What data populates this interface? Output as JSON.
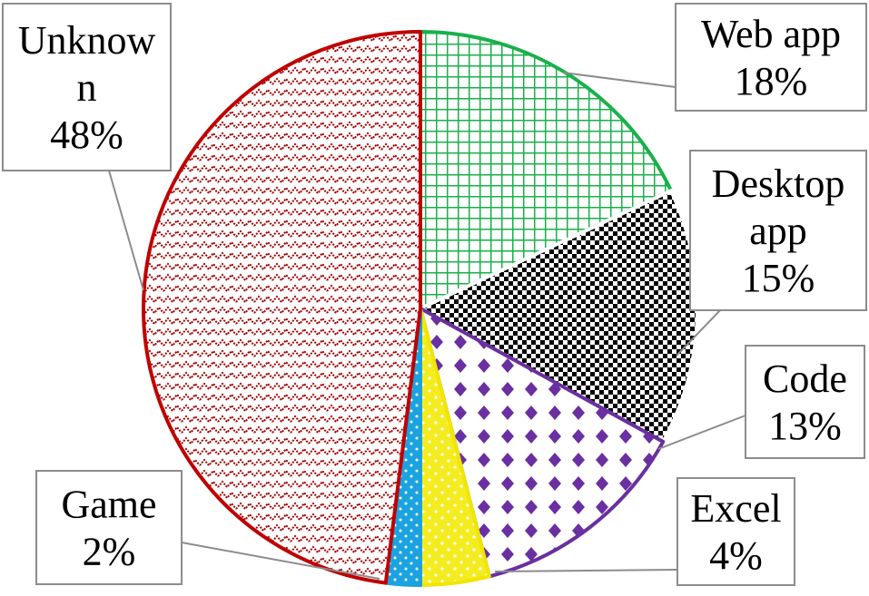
{
  "chart_data": {
    "type": "pie",
    "title": "",
    "slices": [
      {
        "label": "Web app",
        "value": 18,
        "display": [
          "Web app",
          "18%"
        ],
        "stroke": "#19b04b",
        "pattern": "grid-green"
      },
      {
        "label": "Desktop app",
        "value": 15,
        "display": [
          "Desktop",
          "app",
          "15%"
        ],
        "stroke": "#ffffff",
        "pattern": "checker-black"
      },
      {
        "label": "Code",
        "value": 13,
        "display": [
          "Code",
          "13%"
        ],
        "stroke": "#6a2fa0",
        "pattern": "diamond-purple"
      },
      {
        "label": "Excel",
        "value": 4,
        "display": [
          "Excel",
          "4%"
        ],
        "stroke": "#f2e500",
        "pattern": "dots-yellow"
      },
      {
        "label": "Game",
        "value": 2,
        "display": [
          "Game",
          "2%"
        ],
        "stroke": "#1aa3e0",
        "pattern": "dots-blue"
      },
      {
        "label": "Unknown",
        "value": 48,
        "display": [
          "Unknow",
          "n",
          "48%"
        ],
        "stroke": "#c00000",
        "pattern": "zigzag-red"
      }
    ],
    "start_angle_deg": 0,
    "direction": "clockwise",
    "legend": "none",
    "data_labels": "callout-boxes"
  }
}
